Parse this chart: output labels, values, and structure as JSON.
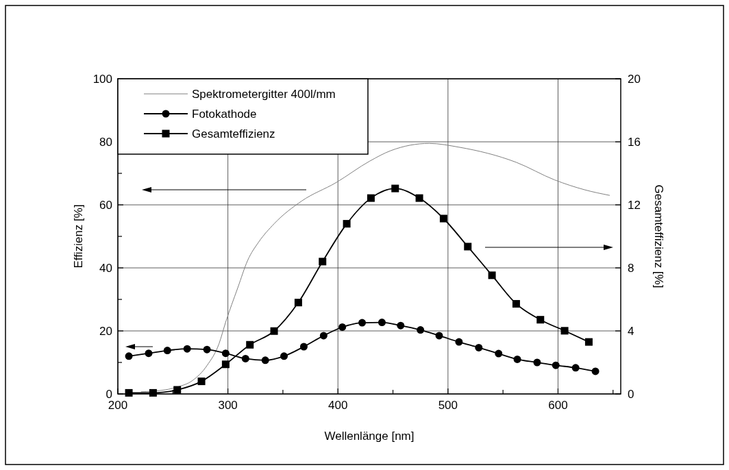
{
  "chart_data": {
    "type": "line",
    "xlabel": "Wellenlänge [nm]",
    "ylabel": "Effizienz [%]",
    "y2label": "Gesamteffizienz [%]",
    "xlim": [
      200,
      657
    ],
    "xticks": [
      200,
      {
        "value": 250,
        "label": null
      },
      300,
      {
        "value": 350,
        "label": null
      },
      400,
      {
        "value": 450,
        "label": null
      },
      500,
      {
        "value": 550,
        "label": null
      },
      600,
      {
        "value": 650,
        "label": null
      }
    ],
    "ylim": [
      0,
      100
    ],
    "yticks": [
      0,
      {
        "value": 10,
        "label": null
      },
      20,
      {
        "value": 30,
        "label": null
      },
      40,
      {
        "value": 50,
        "label": null
      },
      60,
      {
        "value": 70,
        "label": null
      },
      80,
      {
        "value": 90,
        "label": null
      },
      100
    ],
    "y2lim": [
      0,
      20
    ],
    "y2ticks": [
      0,
      4,
      8,
      12,
      16,
      20
    ],
    "grid": true,
    "legend": "top left",
    "line_style": "solid",
    "series": [
      {
        "name": "Spektrometergitter 400l/mm",
        "color": "#808080",
        "marker": "none",
        "x": [
          221,
          243,
          254,
          268,
          281,
          292,
          298,
          309,
          318,
          328,
          342,
          367,
          398,
          429,
          448,
          483,
          510,
          562,
          597,
          624,
          647
        ],
        "values": [
          0.7,
          1.3,
          2.2,
          4.3,
          9,
          16,
          22.8,
          33.7,
          42.4,
          48.2,
          54,
          61.2,
          67,
          73.9,
          77.2,
          79.5,
          78.3,
          73.5,
          67.9,
          64.8,
          63
        ]
      },
      {
        "name": "Fotokathode",
        "color": "#000000",
        "marker": "circle",
        "x": [
          210,
          228,
          245,
          263,
          281,
          298,
          316,
          334,
          351,
          369,
          387,
          404,
          422,
          440,
          457,
          475,
          492,
          510,
          528,
          546,
          563,
          581,
          598,
          616,
          634
        ],
        "values": [
          12,
          12.9,
          13.8,
          14.3,
          14.1,
          12.9,
          11.2,
          10.7,
          12,
          15,
          18.5,
          21.2,
          22.6,
          22.7,
          21.7,
          20.3,
          18.5,
          16.5,
          14.7,
          12.8,
          11,
          10,
          9.1,
          8.3,
          7.2
        ]
      },
      {
        "name": "Gesamteffizienz",
        "color": "#000000",
        "marker": "square",
        "axis": "y2",
        "x": [
          210,
          232,
          254,
          276,
          298,
          320,
          342,
          364,
          386,
          408,
          430,
          452,
          474,
          496,
          518,
          540,
          562,
          584,
          606,
          628
        ],
        "values": [
          0.07,
          0.07,
          0.26,
          0.8,
          1.88,
          3.12,
          3.99,
          5.8,
          8.4,
          10.8,
          12.43,
          13.04,
          12.43,
          11.13,
          9.35,
          7.53,
          5.72,
          4.71,
          4.01,
          3.3
        ]
      }
    ]
  }
}
